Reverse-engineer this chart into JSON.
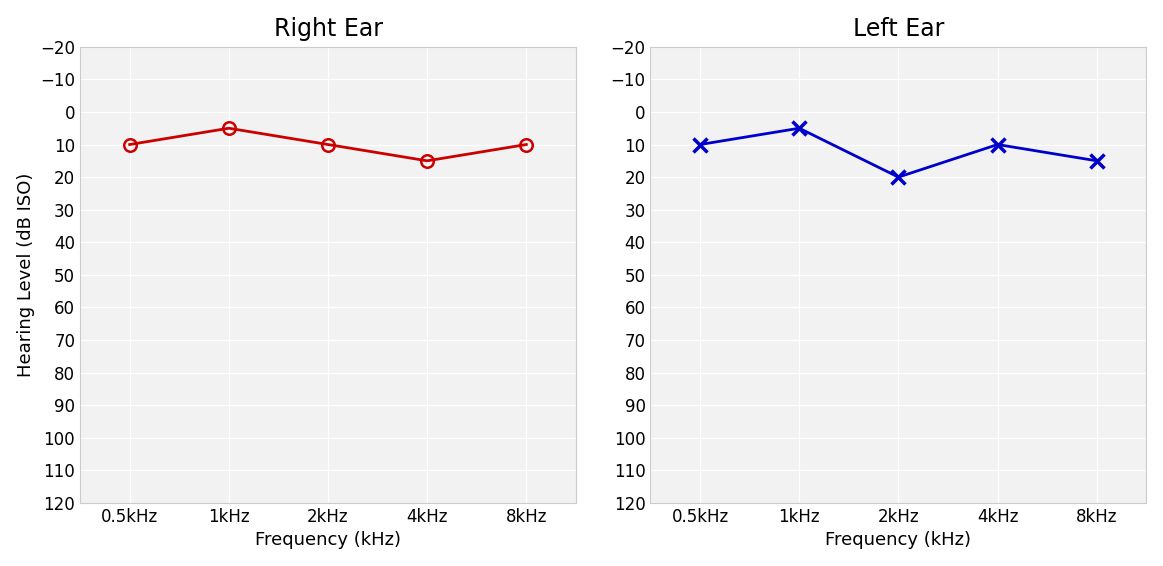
{
  "right_ear": {
    "title": "Right Ear",
    "x": [
      0.5,
      1,
      2,
      4,
      8
    ],
    "y": [
      10,
      5,
      10,
      15,
      10
    ],
    "color": "#cc0000",
    "marker": "o",
    "marker_facecolor": "none",
    "marker_size": 9,
    "linewidth": 2.0
  },
  "left_ear": {
    "title": "Left Ear",
    "x": [
      0.5,
      1,
      2,
      4,
      8
    ],
    "y": [
      10,
      5,
      20,
      10,
      15
    ],
    "color": "#0000cc",
    "marker": "x",
    "marker_size": 10,
    "linewidth": 2.0
  },
  "xlabel": "Frequency (kHz)",
  "ylabel": "Hearing Level (dB ISO)",
  "xtick_labels": [
    "0.5kHz",
    "1kHz",
    "2kHz",
    "4kHz",
    "8kHz"
  ],
  "yticks": [
    -20,
    -10,
    0,
    10,
    20,
    30,
    40,
    50,
    60,
    70,
    80,
    90,
    100,
    110,
    120
  ],
  "ylim": [
    -20,
    120
  ],
  "background_color": "#ffffff",
  "plot_background_color": "#f2f2f2",
  "grid_color": "#ffffff",
  "spine_color": "#cccccc",
  "title_fontsize": 17,
  "label_fontsize": 13,
  "tick_fontsize": 12
}
